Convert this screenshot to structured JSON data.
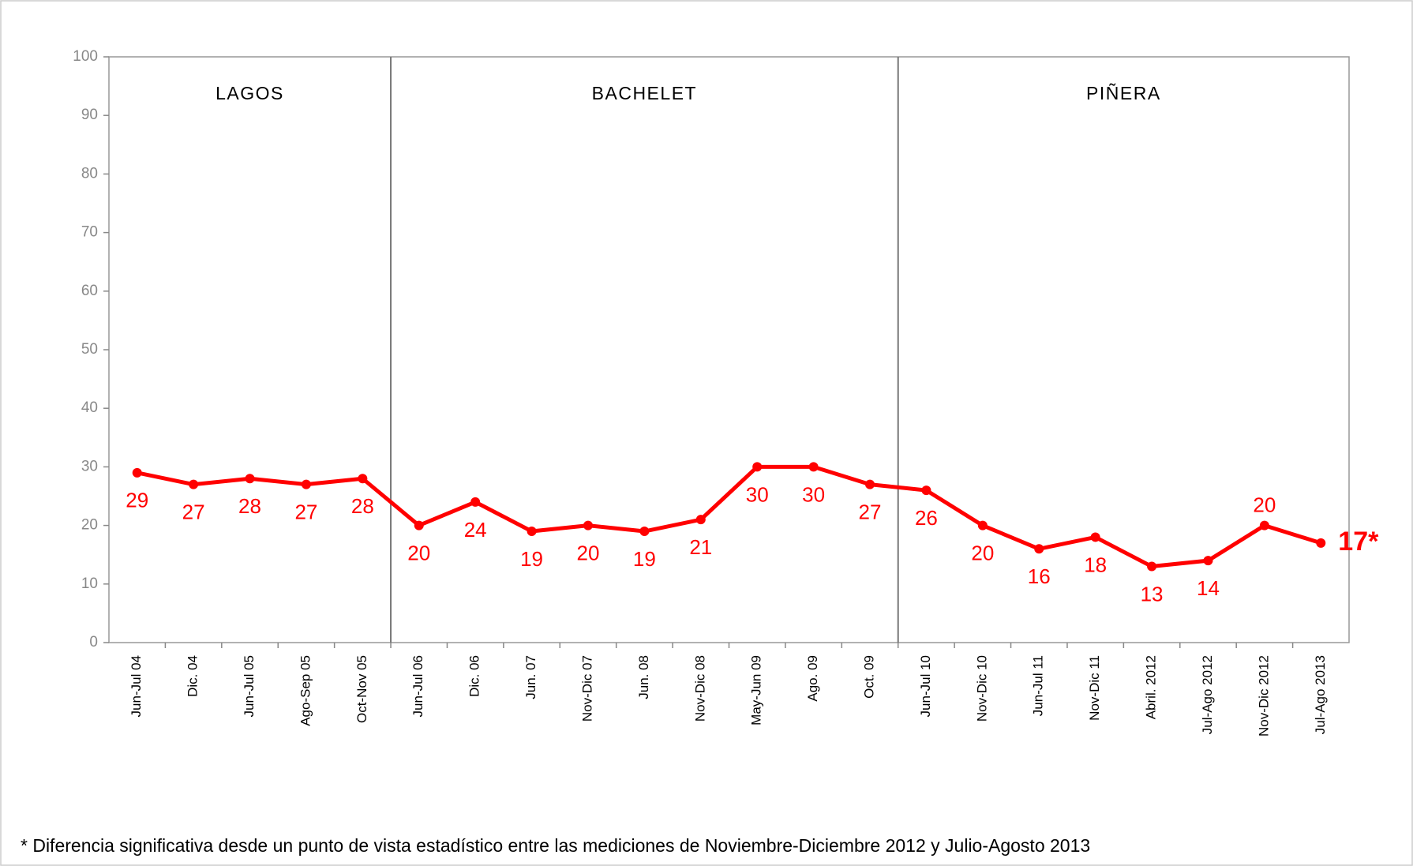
{
  "chart_data": {
    "type": "line",
    "categories": [
      "Jun-Jul 04",
      "Dic. 04",
      "Jun-Jul 05",
      "Ago-Sep 05",
      "Oct-Nov 05",
      "Jun-Jul 06",
      "Dic. 06",
      "Jun. 07",
      "Nov-Dic 07",
      "Jun. 08",
      "Nov-Dic 08",
      "May-Jun 09",
      "Ago. 09",
      "Oct. 09",
      "Jun-Jul 10",
      "Nov-Dic 10",
      "Jun-Jul 11",
      "Nov-Dic 11",
      "Abril. 2012",
      "Jul-Ago 2012",
      "Nov-Dic 2012",
      "Jul-Ago 2013"
    ],
    "series": [
      {
        "color": "#ff0000",
        "values": [
          29,
          27,
          28,
          27,
          28,
          20,
          24,
          19,
          20,
          19,
          21,
          30,
          30,
          27,
          26,
          20,
          16,
          18,
          13,
          14,
          20,
          17
        ],
        "value_labels": [
          "29",
          "27",
          "28",
          "27",
          "28",
          "20",
          "24",
          "19",
          "20",
          "19",
          "21",
          "30",
          "30",
          "27",
          "26",
          "20",
          "16",
          "18",
          "13",
          "14",
          "20",
          "17*"
        ]
      }
    ],
    "annotations": [
      "LAGOS",
      "BACHELET",
      "PIÑERA"
    ],
    "ylim": [
      0,
      100
    ],
    "yticks": [
      0,
      10,
      20,
      30,
      40,
      50,
      60,
      70,
      80,
      90,
      100
    ],
    "footnote": "* Diferencia significativa desde un punto de vista estadístico entre las mediciones de Noviembre-Diciembre 2012 y Julio-Agosto 2013"
  }
}
